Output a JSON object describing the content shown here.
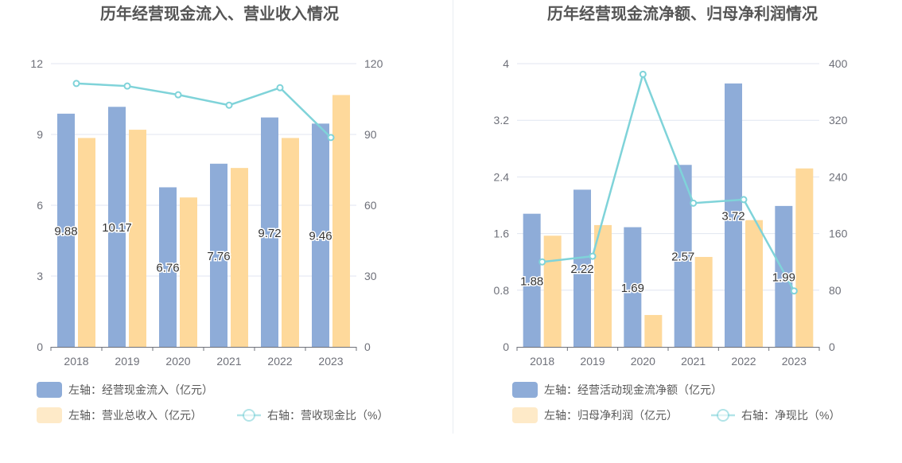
{
  "chart_data": [
    {
      "type": "bar+line",
      "title": "历年经营现金流入、营业收入情况",
      "categories": [
        "2018",
        "2019",
        "2020",
        "2021",
        "2022",
        "2023"
      ],
      "left_axis": {
        "ticks": [
          "0",
          "3",
          "6",
          "9",
          "12"
        ],
        "ylim": [
          0,
          12
        ]
      },
      "right_axis": {
        "ticks": [
          "0",
          "30",
          "60",
          "90",
          "120"
        ],
        "ylim": [
          0,
          120
        ]
      },
      "series": [
        {
          "name": "左轴：经营现金流入（亿元）",
          "type": "bar",
          "axis": "left",
          "color": "#8eacd8",
          "values": [
            9.88,
            10.17,
            6.76,
            7.76,
            9.72,
            9.46
          ],
          "labels": [
            "9.88",
            "10.17",
            "6.76",
            "7.76",
            "9.72",
            "9.46"
          ]
        },
        {
          "name": "左轴：营业总收入（亿元）",
          "type": "bar",
          "axis": "left",
          "color": "#fed99b",
          "values": [
            8.85,
            9.2,
            6.33,
            7.58,
            8.85,
            10.67
          ]
        },
        {
          "name": "右轴：营收现金比（%）",
          "type": "line",
          "axis": "right",
          "color": "#7fd3d9",
          "values": [
            111.6,
            110.5,
            106.8,
            102.4,
            109.8,
            88.7
          ]
        }
      ]
    },
    {
      "type": "bar+line",
      "title": "历年经营现金流净额、归母净利润情况",
      "categories": [
        "2018",
        "2019",
        "2020",
        "2021",
        "2022",
        "2023"
      ],
      "left_axis": {
        "ticks": [
          "0",
          "0.8",
          "1.6",
          "2.4",
          "3.2",
          "4"
        ],
        "ylim": [
          0,
          4
        ]
      },
      "right_axis": {
        "ticks": [
          "0",
          "80",
          "160",
          "240",
          "320",
          "400"
        ],
        "ylim": [
          0,
          400
        ]
      },
      "series": [
        {
          "name": "左轴：经营活动现金流净额（亿元）",
          "type": "bar",
          "axis": "left",
          "color": "#8eacd8",
          "values": [
            1.88,
            2.22,
            1.69,
            2.57,
            3.72,
            1.99
          ],
          "labels": [
            "1.88",
            "2.22",
            "1.69",
            "2.57",
            "3.72",
            "1.99"
          ]
        },
        {
          "name": "左轴：归母净利润（亿元）",
          "type": "bar",
          "axis": "left",
          "color": "#fed99b",
          "values": [
            1.57,
            1.72,
            0.45,
            1.27,
            1.79,
            2.52
          ]
        },
        {
          "name": "右轴：净现比（%）",
          "type": "line",
          "axis": "right",
          "color": "#7fd3d9",
          "values": [
            120,
            128,
            385,
            203,
            208,
            79
          ]
        }
      ]
    }
  ]
}
